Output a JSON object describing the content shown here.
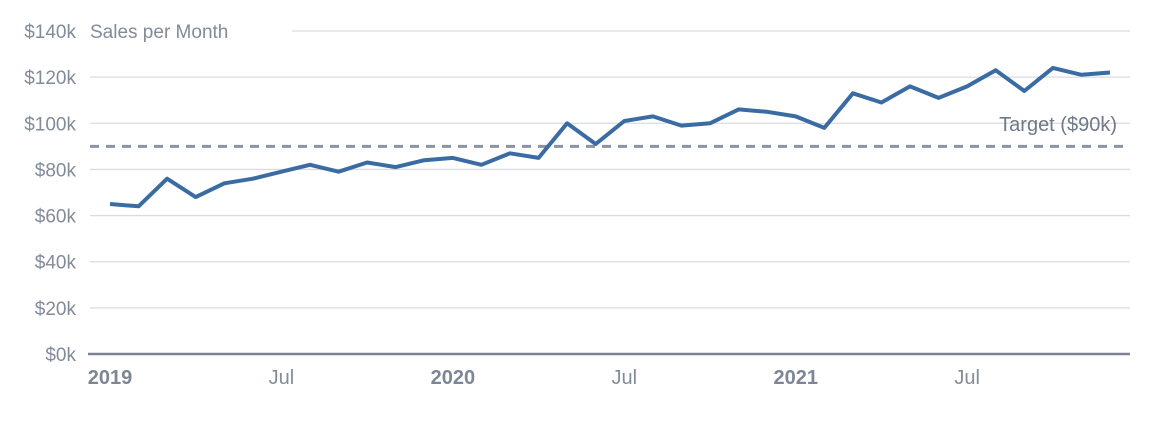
{
  "chart_data": {
    "type": "line",
    "title": "Sales per Month",
    "units": "USD thousands",
    "categories": [
      "Jan 2019",
      "Feb 2019",
      "Mar 2019",
      "Apr 2019",
      "May 2019",
      "Jun 2019",
      "Jul 2019",
      "Aug 2019",
      "Sep 2019",
      "Oct 2019",
      "Nov 2019",
      "Dec 2019",
      "Jan 2020",
      "Feb 2020",
      "Mar 2020",
      "Apr 2020",
      "May 2020",
      "Jun 2020",
      "Jul 2020",
      "Aug 2020",
      "Sep 2020",
      "Oct 2020",
      "Nov 2020",
      "Dec 2020",
      "Jan 2021",
      "Feb 2021",
      "Mar 2021",
      "Apr 2021",
      "May 2021",
      "Jun 2021",
      "Jul 2021",
      "Aug 2021",
      "Sep 2021",
      "Oct 2021",
      "Nov 2021",
      "Dec 2021"
    ],
    "series": [
      {
        "name": "Sales",
        "values": [
          65,
          64,
          76,
          68,
          74,
          76,
          79,
          82,
          79,
          83,
          81,
          84,
          85,
          82,
          87,
          85,
          100,
          91,
          101,
          103,
          99,
          100,
          106,
          105,
          103,
          98,
          113,
          109,
          116,
          111,
          116,
          123,
          114,
          124,
          121,
          122
        ]
      }
    ],
    "target": {
      "label": "Target ($90k)",
      "value": 90
    },
    "ylim": [
      0,
      140
    ],
    "y_ticks": [
      {
        "value": 0,
        "label": "$0k"
      },
      {
        "value": 20,
        "label": "$20k"
      },
      {
        "value": 40,
        "label": "$40k"
      },
      {
        "value": 60,
        "label": "$60k"
      },
      {
        "value": 80,
        "label": "$80k"
      },
      {
        "value": 100,
        "label": "$100k"
      },
      {
        "value": 120,
        "label": "$120k"
      },
      {
        "value": 140,
        "label": "$140k"
      }
    ],
    "x_ticks": [
      {
        "label": "2019",
        "month_index": 0,
        "bold": true
      },
      {
        "label": "Jul",
        "month_index": 6,
        "bold": false
      },
      {
        "label": "2020",
        "month_index": 12,
        "bold": true
      },
      {
        "label": "Jul",
        "month_index": 18,
        "bold": false
      },
      {
        "label": "2021",
        "month_index": 24,
        "bold": true
      },
      {
        "label": "Jul",
        "month_index": 30,
        "bold": false
      }
    ],
    "grid": true,
    "legend": "none"
  },
  "colors": {
    "series_line": "#3a6ba3",
    "target_line": "#8a93a1",
    "gridline": "#d9dce1",
    "axis_line": "#7b8494",
    "tick_text": "#828b9a",
    "target_text": "#6f7987"
  }
}
